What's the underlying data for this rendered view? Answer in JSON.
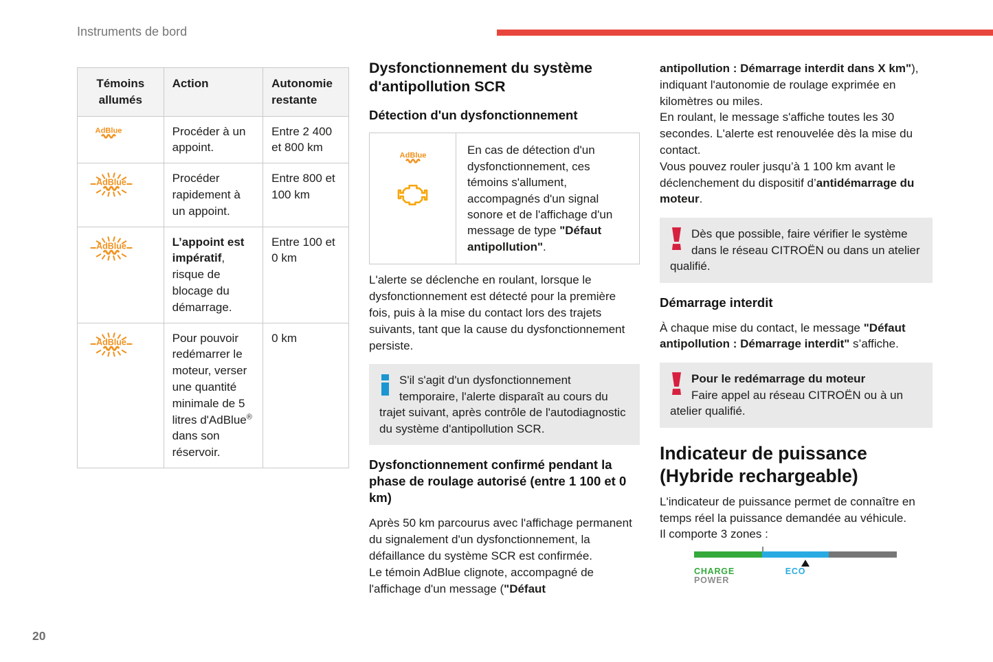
{
  "page": {
    "section_header": "Instruments de bord",
    "page_number": "20"
  },
  "colors": {
    "accent_red": "#e8463c",
    "warning_red": "#d6203f",
    "info_blue": "#1b96d1",
    "adblue_orange": "#f0921e",
    "engine_orange": "#f8a60b",
    "charge_green": "#35a93c",
    "eco_blue": "#29abe2",
    "power_gray": "#767676",
    "box_gray": "#e9e9e9"
  },
  "icons": {
    "adblue_label": "AdBlue"
  },
  "table": {
    "col_headers": [
      "Témoins allumés",
      "Action",
      "Autonomie restante"
    ],
    "rows": [
      {
        "icon": "adblue-warning-steady",
        "action": [
          {
            "t": "Procéder à un appoint."
          }
        ],
        "autonomy": "Entre 2 400 et 800 km"
      },
      {
        "icon": "adblue-warning-blinking",
        "action": [
          {
            "t": "Procéder rapidement à un appoint."
          }
        ],
        "autonomy": "Entre 800 et 100 km"
      },
      {
        "icon": "adblue-warning-blinking",
        "action": [
          {
            "t": "L’appoint est impératif",
            "b": 1
          },
          {
            "t": ", risque de blocage du démarrage."
          }
        ],
        "autonomy": "Entre 100 et 0 km"
      },
      {
        "icon": "adblue-warning-blinking",
        "action": [
          {
            "t": "Pour pouvoir redémarrer le moteur, verser une quantité minimale de 5 litres d'AdBlue"
          },
          {
            "t": "®",
            "sup": 1
          },
          {
            "t": " dans son réservoir."
          }
        ],
        "autonomy": "0 km"
      }
    ]
  },
  "middle": {
    "title": "Dysfonctionnement du système d'antipollution SCR",
    "subtitle_detection": "Détection d'un dysfonctionnement",
    "detection_box_text": [
      {
        "t": "En cas de détection d'un dysfonctionnement, ces témoins s'allument, accompagnés d'un signal sonore et de l'affichage d'un message de type "
      },
      {
        "t": "\"Défaut antipollution\"",
        "b": 1
      },
      {
        "t": "."
      }
    ],
    "paragraph_alert": "L'alerte se déclenche en roulant, lorsque le dysfonctionnement est détecté pour la première fois, puis à la mise du contact lors des trajets suivants, tant que la cause du dysfonctionnement persiste.",
    "info_box_text": [
      {
        "t": "S'il s'agit d'un dysfonctionnement temporaire, l'alerte disparaît au cours du trajet suivant, après contrôle de l'autodiagnostic du système d'antipollution SCR."
      }
    ],
    "subtitle_confirmed": "Dysfonctionnement confirmé pendant la phase de roulage autorisé (entre 1 100 et 0 km)",
    "paragraph_confirmed": [
      {
        "t": "Après 50 km parcourus avec l'affichage permanent du signalement d'un dysfonctionnement, la défaillance du système SCR est confirmée."
      },
      {
        "br": 1
      },
      {
        "t": "Le témoin AdBlue clignote, accompagné de l'affichage d'un message ("
      },
      {
        "t": "\"Défaut",
        "b": 1
      }
    ]
  },
  "right": {
    "paragraph_continuation": [
      {
        "t": "antipollution : Démarrage interdit dans X km\"",
        "b": 1
      },
      {
        "t": "), indiquant l'autonomie de roulage exprimée en kilomètres ou miles."
      },
      {
        "br": 1
      },
      {
        "t": "En roulant, le message s'affiche toutes les 30 secondes. L'alerte est renouvelée dès la mise du contact."
      },
      {
        "br": 1
      },
      {
        "t": "Vous pouvez rouler jusqu’à 1 100 km avant le déclenchement du dispositif d’"
      },
      {
        "t": "antidémarrage du moteur",
        "b": 1
      },
      {
        "t": "."
      }
    ],
    "warning_box_1": [
      {
        "t": "Dès que possible, faire vérifier le système dans le réseau CITROËN ou dans un atelier qualifié."
      }
    ],
    "subtitle_no_start": "Démarrage interdit",
    "paragraph_no_start": [
      {
        "t": "À chaque mise du contact, le message "
      },
      {
        "t": "\"Défaut antipollution : Démarrage interdit\"",
        "b": 1
      },
      {
        "t": " s’affiche."
      }
    ],
    "warning_box_2": [
      {
        "t": "Pour le redémarrage du moteur",
        "b": 1
      },
      {
        "br": 1
      },
      {
        "t": "Faire appel au réseau CITROËN ou à un atelier qualifié."
      }
    ],
    "title_power": "Indicateur de puissance (Hybride rechargeable)",
    "paragraph_power": [
      {
        "t": "L'indicateur de puissance permet de connaître en temps réel la puissance demandée au véhicule."
      },
      {
        "br": 1
      },
      {
        "t": "Il comporte 3 zones :"
      }
    ],
    "power_indicator": {
      "zones": [
        {
          "label": "CHARGE",
          "color": "#35a93c",
          "width_pct": 33.5
        },
        {
          "label": "ECO",
          "color": "#29abe2",
          "width_pct": 33
        },
        {
          "label": "POWER",
          "color": "#767676",
          "width_pct": 33.5
        }
      ],
      "pointer_left": "55%"
    }
  }
}
